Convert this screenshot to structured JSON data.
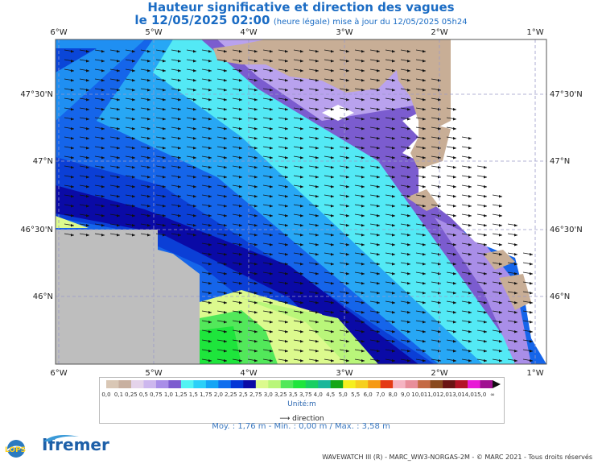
{
  "header": {
    "title": "Hauteur significative et direction des vagues",
    "date_prefix": "le 12/05/2025 02:00",
    "date_suffix": "(heure légale) mise à jour du 12/05/2025 05h24"
  },
  "axes": {
    "lon_labels": [
      "6°W",
      "5°W",
      "4°W",
      "3°W",
      "2°W",
      "1°W"
    ],
    "lat_labels": [
      "47°30'N",
      "47°N",
      "46°30'N",
      "46°N"
    ]
  },
  "legend": {
    "tick_labels": [
      "0,0",
      "0,1",
      "0,25",
      "0,5",
      "0,75",
      "1,0",
      "1,25",
      "1,5",
      "1,75",
      "2,0",
      "2,25",
      "2,5",
      "2,75",
      "3,0",
      "3,25",
      "3,5",
      "3,75",
      "4,0",
      "4,5",
      "5,0",
      "5,5",
      "6,0",
      "7,0",
      "8,0",
      "9,0",
      "10,0",
      "11,0",
      "12,0",
      "13,0",
      "14,0",
      "15,0",
      "∞"
    ],
    "colors": [
      "#d9c7b5",
      "#c8b0a0",
      "#e4d3ea",
      "#cdb7ee",
      "#a98ee8",
      "#7d5ccf",
      "#52f3f3",
      "#2bd0f8",
      "#15a5f5",
      "#0f6eee",
      "#0436d6",
      "#0a0aa6",
      "#dcfa8e",
      "#b9f67a",
      "#52e85a",
      "#1ee53c",
      "#19cf62",
      "#1ab79a",
      "#16a617",
      "#f5ef1e",
      "#f6cf1e",
      "#f69a14",
      "#e43a14",
      "#f5b4c2",
      "#e88e9a",
      "#c46a44",
      "#8a4a1f",
      "#6a1414",
      "#b31226",
      "#e81ad6",
      "#a01090"
    ],
    "unit": "Unité:m",
    "direction_label": "direction"
  },
  "stats": {
    "text": "Moy. : 1,76 m   -   Min. : 0,00 m / Max. : 3,58 m"
  },
  "footer": {
    "credit": "WAVEWATCH III (R) - MARC_WW3-NORGAS-2M - © MARC 2021 - Tous droits réservés",
    "logo_lops": "LOPS",
    "logo_ifremer": "Ifremer"
  },
  "map_colors": {
    "land": "#c8ae96",
    "nodata": "#bebebe",
    "frame": "#555555"
  }
}
